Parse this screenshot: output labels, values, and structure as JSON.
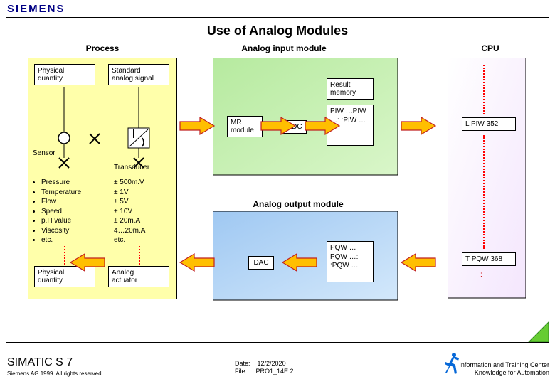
{
  "brand": "SIEMENS",
  "title": "Use of Analog Modules",
  "headers": {
    "process": "Process",
    "input": "Analog input module",
    "cpu": "CPU",
    "output": "Analog output module"
  },
  "process": {
    "physical": "Physical\nquantity",
    "standard": "Standard\nanalog signal",
    "sensor": "Sensor",
    "transducer": "Transducer",
    "physical2": "Physical\nquantity",
    "actuator": "Analog\nactuator",
    "examples_left": [
      "Pressure",
      "Temperature",
      "Flow",
      "Speed",
      "p.H value",
      "Viscosity",
      "etc."
    ],
    "examples_right": [
      "± 500m.V",
      "± 1V",
      "± 5V",
      "± 10V",
      "± 20m.A",
      "4…20m.A",
      "etc."
    ]
  },
  "input_module": {
    "mr": "MR\nmodule",
    "adc": "ADC",
    "result": "Result\nmemory",
    "piw": [
      "PIW …",
      "PIW …",
      ":  :",
      "PIW …"
    ]
  },
  "output_module": {
    "dac": "DAC",
    "pqw": [
      "PQW …",
      "PQW …",
      ":  :",
      "PQW …"
    ]
  },
  "cpu": {
    "load": "L  PIW 352",
    "transfer": "T  PQW 368",
    "dots": ":"
  },
  "colors": {
    "process_fill": "#ffffaa",
    "input_fill_a": "#b6ea9f",
    "input_fill_b": "#d9f6c9",
    "output_fill_a": "#9fc8f2",
    "output_fill_b": "#d3e8fb",
    "cpu_fill_a": "#ffffff",
    "cpu_fill_b": "#f7e6ff",
    "arrow_body": "#ffbf00",
    "arrow_stroke": "#c02020",
    "corner": "#66cc33"
  },
  "footer": {
    "product": "SIMATIC S 7",
    "copyright": "Siemens AG 1999. All rights reserved.",
    "date_label": "Date:",
    "file_label": "File:",
    "date_value": "12/2/2020",
    "file_value": "PRO1_14E.2",
    "info1": "Information and Training Center",
    "info2": "Knowledge for Automation"
  }
}
